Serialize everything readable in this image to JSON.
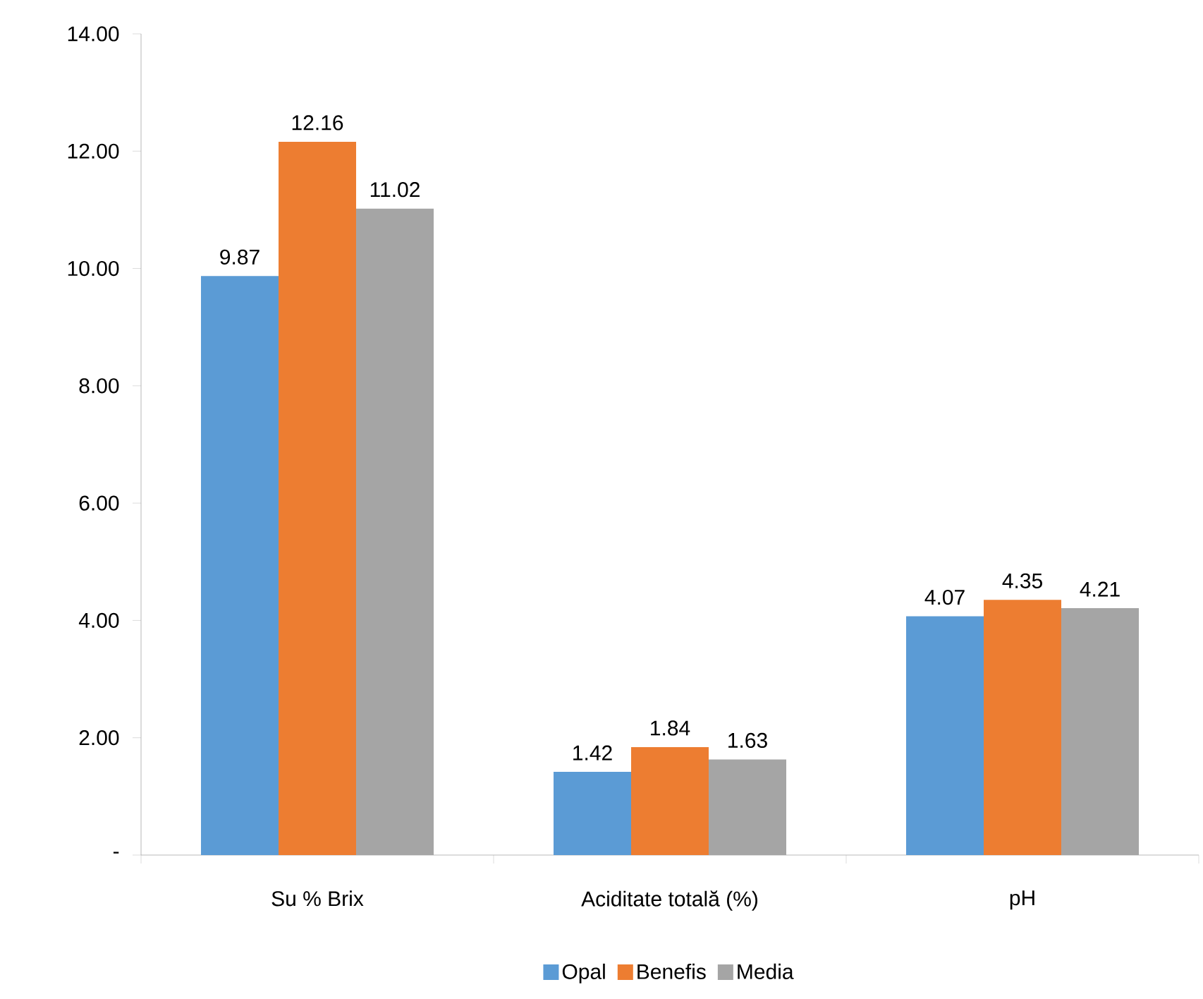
{
  "chart_data": {
    "type": "bar",
    "categories": [
      "Su % Brix",
      "Aciditate totală (%)",
      "pH"
    ],
    "series": [
      {
        "name": "Opal",
        "color": "#5b9bd5",
        "values": [
          9.87,
          1.42,
          4.07
        ]
      },
      {
        "name": "Benefis",
        "color": "#ed7d31",
        "values": [
          12.16,
          1.84,
          4.35
        ]
      },
      {
        "name": "Media",
        "color": "#a5a5a5",
        "values": [
          11.02,
          1.63,
          4.21
        ]
      }
    ],
    "ylim": [
      0,
      14
    ],
    "yticks": [
      {
        "value": 0,
        "label": "-"
      },
      {
        "value": 2,
        "label": "2.00"
      },
      {
        "value": 4,
        "label": "4.00"
      },
      {
        "value": 6,
        "label": "6.00"
      },
      {
        "value": 8,
        "label": "8.00"
      },
      {
        "value": 10,
        "label": "10.00"
      },
      {
        "value": 12,
        "label": "12.00"
      },
      {
        "value": 14,
        "label": "14.00"
      }
    ],
    "data_labels": true,
    "grid": false,
    "legend": "bottom"
  }
}
